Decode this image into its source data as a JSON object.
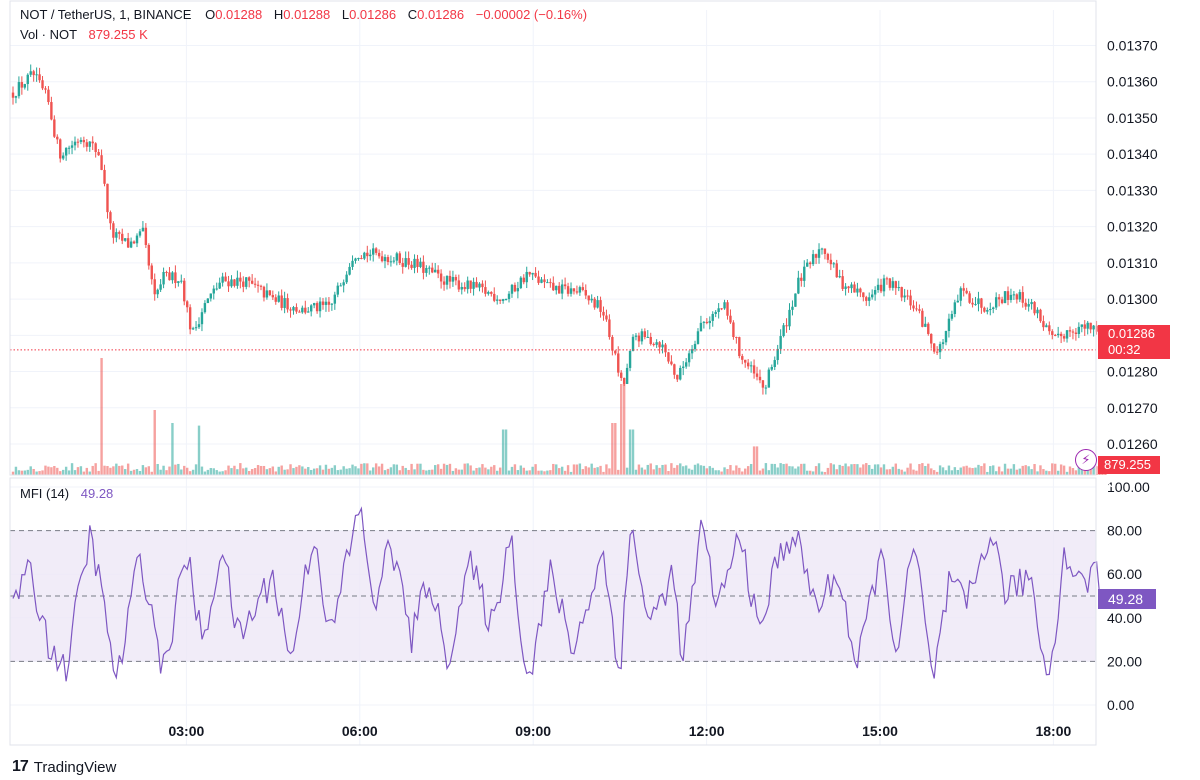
{
  "legend": {
    "symbol": "NOT / TetherUS, 1, BINANCE",
    "o_label": "O",
    "o_value": "0.01288",
    "h_label": "H",
    "h_value": "0.01288",
    "l_label": "L",
    "l_value": "0.01286",
    "c_label": "C",
    "c_value": "0.01286",
    "change": "−0.00002 (−0.16%)",
    "vol_label": "Vol · NOT",
    "vol_value": "879.255 K"
  },
  "price_tag": {
    "price": "0.01286",
    "countdown": "00:32"
  },
  "vol_tag": "879.255 K",
  "mfi": {
    "label": "MFI (14)",
    "value": "49.28"
  },
  "branding": {
    "logo_mark": "17",
    "name": "TradingView"
  },
  "colors": {
    "up": "#26a69a",
    "down": "#ef5350",
    "mfi_line": "#7e57c2",
    "mfi_band": "#ede7f6",
    "last_price": "#f23645"
  },
  "chart_data": [
    {
      "type": "candlestick",
      "x_tick_labels": [
        "03:00",
        "06:00",
        "09:00",
        "12:00",
        "15:00",
        "18:00"
      ],
      "y_tick_labels": [
        "0.01370",
        "0.01360",
        "0.01350",
        "0.01340",
        "0.01330",
        "0.01320",
        "0.01310",
        "0.01300",
        "0.01290",
        "0.01280",
        "0.01270",
        "0.01260"
      ],
      "ylim": [
        0.01252,
        0.01374
      ],
      "last_price": 0.01286,
      "close_path": [
        [
          0.0,
          0.01357
        ],
        [
          0.35,
          0.01362
        ],
        [
          0.6,
          0.01355
        ],
        [
          0.8,
          0.0134
        ],
        [
          1.2,
          0.01345
        ],
        [
          1.5,
          0.0134
        ],
        [
          1.7,
          0.01318
        ],
        [
          2.0,
          0.01315
        ],
        [
          2.25,
          0.01318
        ],
        [
          2.45,
          0.013
        ],
        [
          2.6,
          0.01306
        ],
        [
          2.9,
          0.01306
        ],
        [
          3.1,
          0.0129
        ],
        [
          3.3,
          0.01298
        ],
        [
          3.6,
          0.01305
        ],
        [
          4.0,
          0.01305
        ],
        [
          4.5,
          0.013
        ],
        [
          5.0,
          0.01297
        ],
        [
          5.5,
          0.01298
        ],
        [
          5.9,
          0.01313
        ],
        [
          6.4,
          0.01312
        ],
        [
          6.9,
          0.0131
        ],
        [
          7.5,
          0.01305
        ],
        [
          8.0,
          0.01303
        ],
        [
          8.5,
          0.013
        ],
        [
          8.9,
          0.01307
        ],
        [
          9.3,
          0.01303
        ],
        [
          9.8,
          0.01302
        ],
        [
          10.2,
          0.01297
        ],
        [
          10.4,
          0.01285
        ],
        [
          10.55,
          0.01275
        ],
        [
          10.75,
          0.0129
        ],
        [
          11.2,
          0.01288
        ],
        [
          11.5,
          0.01278
        ],
        [
          11.9,
          0.01293
        ],
        [
          12.3,
          0.01298
        ],
        [
          12.6,
          0.01284
        ],
        [
          13.0,
          0.01275
        ],
        [
          13.3,
          0.0129
        ],
        [
          13.6,
          0.01305
        ],
        [
          14.0,
          0.01315
        ],
        [
          14.3,
          0.01305
        ],
        [
          14.8,
          0.013
        ],
        [
          15.1,
          0.01305
        ],
        [
          15.6,
          0.01298
        ],
        [
          16.0,
          0.01285
        ],
        [
          16.4,
          0.01302
        ],
        [
          16.8,
          0.01298
        ],
        [
          17.3,
          0.01302
        ],
        [
          17.7,
          0.01297
        ],
        [
          18.0,
          0.01288
        ],
        [
          18.3,
          0.01292
        ],
        [
          18.7,
          0.01292
        ],
        [
          18.9,
          0.01286
        ]
      ]
    },
    {
      "type": "bar",
      "name": "Vol · NOT",
      "last_value": "879.255 K",
      "spikes": [
        [
          1.55,
          0.9
        ],
        [
          2.45,
          0.5
        ],
        [
          2.75,
          0.4
        ],
        [
          3.2,
          0.38
        ],
        [
          8.5,
          0.35
        ],
        [
          10.4,
          0.4
        ],
        [
          10.55,
          0.7
        ],
        [
          10.7,
          0.35
        ],
        [
          12.85,
          0.22
        ]
      ]
    },
    {
      "type": "line",
      "name": "MFI (14)",
      "y_tick_labels": [
        "100.00",
        "80.00",
        "60.00",
        "40.00",
        "20.00",
        "0.00"
      ],
      "ylim": [
        0,
        100
      ],
      "band": [
        20,
        80
      ],
      "midline": 50,
      "last_value": 49.28,
      "keypoints": [
        [
          0.0,
          50
        ],
        [
          0.3,
          60
        ],
        [
          0.6,
          30
        ],
        [
          0.9,
          15
        ],
        [
          1.35,
          80
        ],
        [
          1.5,
          55
        ],
        [
          1.8,
          10
        ],
        [
          2.2,
          70
        ],
        [
          2.6,
          15
        ],
        [
          3.0,
          70
        ],
        [
          3.3,
          25
        ],
        [
          3.6,
          75
        ],
        [
          3.9,
          30
        ],
        [
          4.5,
          60
        ],
        [
          4.8,
          20
        ],
        [
          5.2,
          80
        ],
        [
          5.5,
          30
        ],
        [
          5.8,
          70
        ],
        [
          6.0,
          90
        ],
        [
          6.3,
          40
        ],
        [
          6.5,
          80
        ],
        [
          6.9,
          30
        ],
        [
          7.2,
          60
        ],
        [
          7.5,
          20
        ],
        [
          7.9,
          65
        ],
        [
          8.3,
          35
        ],
        [
          8.6,
          80
        ],
        [
          8.9,
          10
        ],
        [
          9.3,
          60
        ],
        [
          9.7,
          25
        ],
        [
          10.2,
          70
        ],
        [
          10.5,
          15
        ],
        [
          10.7,
          85
        ],
        [
          11.0,
          35
        ],
        [
          11.4,
          60
        ],
        [
          11.6,
          20
        ],
        [
          11.9,
          80
        ],
        [
          12.2,
          45
        ],
        [
          12.6,
          80
        ],
        [
          12.9,
          30
        ],
        [
          13.2,
          65
        ],
        [
          13.5,
          80
        ],
        [
          13.9,
          45
        ],
        [
          14.3,
          60
        ],
        [
          14.6,
          15
        ],
        [
          15.0,
          70
        ],
        [
          15.3,
          25
        ],
        [
          15.6,
          75
        ],
        [
          15.9,
          10
        ],
        [
          16.2,
          55
        ],
        [
          16.5,
          45
        ],
        [
          16.9,
          80
        ],
        [
          17.2,
          50
        ],
        [
          17.6,
          60
        ],
        [
          17.9,
          10
        ],
        [
          18.2,
          70
        ],
        [
          18.5,
          55
        ],
        [
          18.7,
          62
        ],
        [
          18.9,
          49.28
        ]
      ]
    }
  ]
}
